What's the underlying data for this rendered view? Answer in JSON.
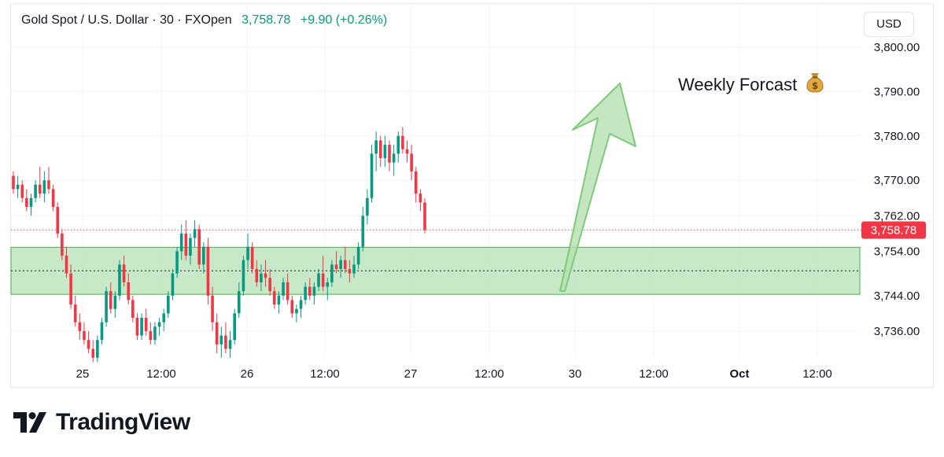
{
  "header": {
    "symbol": "Gold Spot / U.S. Dollar · 30 · FXOpen",
    "price": "3,758.78",
    "change": "+9.90 (+0.26%)"
  },
  "currency_button": "USD",
  "annotation": "Weekly Forcast",
  "brand": "TradingView",
  "colors": {
    "up": "#089981",
    "down": "#f23645",
    "zone_fill": "#b9e3ba",
    "zone_border": "#4caf50",
    "arrow_fill": "#b5e0b0",
    "arrow_stroke": "#7fc97a"
  },
  "chart_data": {
    "type": "candlestick",
    "symbol": "Gold Spot / U.S. Dollar",
    "interval": "30",
    "yaxis": {
      "ticks": [
        "3,800.00",
        "3,790.00",
        "3,780.00",
        "3,770.00",
        "3,762.00",
        "3,754.00",
        "3,744.00",
        "3,736.00"
      ],
      "tick_values": [
        3800,
        3790,
        3780,
        3770,
        3762,
        3754,
        3744,
        3736
      ],
      "last_price_label": "3,758.78",
      "last_price": 3758.78,
      "ylim": [
        3732,
        3802
      ]
    },
    "xaxis": {
      "ticks": [
        "25",
        "12:00",
        "26",
        "12:00",
        "27",
        "12:00",
        "30",
        "12:00",
        "Oct",
        "12:00"
      ],
      "bold": [
        false,
        false,
        false,
        false,
        false,
        false,
        false,
        false,
        true,
        false
      ]
    },
    "grid": true,
    "zone": {
      "top": 3754.9,
      "bottom": 3744.3,
      "mid": 3749.6
    },
    "arrow": {
      "direction": "up"
    },
    "candles": [
      {
        "o": 3771,
        "h": 3772,
        "l": 3767,
        "c": 3768
      },
      {
        "o": 3768,
        "h": 3771,
        "l": 3766,
        "c": 3769
      },
      {
        "o": 3769,
        "h": 3770,
        "l": 3765,
        "c": 3766
      },
      {
        "o": 3766,
        "h": 3768,
        "l": 3763,
        "c": 3764
      },
      {
        "o": 3764,
        "h": 3767,
        "l": 3762,
        "c": 3766
      },
      {
        "o": 3766,
        "h": 3770,
        "l": 3765,
        "c": 3769
      },
      {
        "o": 3769,
        "h": 3773,
        "l": 3766,
        "c": 3767
      },
      {
        "o": 3767,
        "h": 3772,
        "l": 3765,
        "c": 3770
      },
      {
        "o": 3770,
        "h": 3773,
        "l": 3767,
        "c": 3768
      },
      {
        "o": 3768,
        "h": 3769,
        "l": 3763,
        "c": 3764
      },
      {
        "o": 3764,
        "h": 3765,
        "l": 3757,
        "c": 3758
      },
      {
        "o": 3758,
        "h": 3759,
        "l": 3752,
        "c": 3753
      },
      {
        "o": 3753,
        "h": 3755,
        "l": 3748,
        "c": 3749
      },
      {
        "o": 3749,
        "h": 3751,
        "l": 3741,
        "c": 3742
      },
      {
        "o": 3742,
        "h": 3744,
        "l": 3737,
        "c": 3738
      },
      {
        "o": 3738,
        "h": 3740,
        "l": 3734,
        "c": 3736
      },
      {
        "o": 3736,
        "h": 3738,
        "l": 3733,
        "c": 3734
      },
      {
        "o": 3734,
        "h": 3736,
        "l": 3731,
        "c": 3732
      },
      {
        "o": 3732,
        "h": 3734,
        "l": 3729,
        "c": 3730
      },
      {
        "o": 3730,
        "h": 3735,
        "l": 3729,
        "c": 3734
      },
      {
        "o": 3734,
        "h": 3739,
        "l": 3733,
        "c": 3738
      },
      {
        "o": 3738,
        "h": 3746,
        "l": 3737,
        "c": 3745
      },
      {
        "o": 3745,
        "h": 3747,
        "l": 3740,
        "c": 3741
      },
      {
        "o": 3741,
        "h": 3745,
        "l": 3739,
        "c": 3744
      },
      {
        "o": 3744,
        "h": 3752,
        "l": 3743,
        "c": 3751
      },
      {
        "o": 3751,
        "h": 3753,
        "l": 3746,
        "c": 3747
      },
      {
        "o": 3747,
        "h": 3749,
        "l": 3742,
        "c": 3743
      },
      {
        "o": 3743,
        "h": 3744,
        "l": 3738,
        "c": 3739
      },
      {
        "o": 3739,
        "h": 3740,
        "l": 3734,
        "c": 3735
      },
      {
        "o": 3735,
        "h": 3740,
        "l": 3734,
        "c": 3739
      },
      {
        "o": 3739,
        "h": 3741,
        "l": 3735,
        "c": 3736
      },
      {
        "o": 3736,
        "h": 3738,
        "l": 3733,
        "c": 3734
      },
      {
        "o": 3734,
        "h": 3738,
        "l": 3733,
        "c": 3737
      },
      {
        "o": 3737,
        "h": 3739,
        "l": 3735,
        "c": 3738
      },
      {
        "o": 3738,
        "h": 3741,
        "l": 3736,
        "c": 3740
      },
      {
        "o": 3740,
        "h": 3745,
        "l": 3739,
        "c": 3744
      },
      {
        "o": 3744,
        "h": 3750,
        "l": 3743,
        "c": 3749
      },
      {
        "o": 3749,
        "h": 3755,
        "l": 3748,
        "c": 3754
      },
      {
        "o": 3754,
        "h": 3760,
        "l": 3752,
        "c": 3758
      },
      {
        "o": 3758,
        "h": 3761,
        "l": 3752,
        "c": 3753
      },
      {
        "o": 3753,
        "h": 3758,
        "l": 3751,
        "c": 3757
      },
      {
        "o": 3757,
        "h": 3761,
        "l": 3755,
        "c": 3759
      },
      {
        "o": 3759,
        "h": 3760,
        "l": 3750,
        "c": 3751
      },
      {
        "o": 3751,
        "h": 3756,
        "l": 3749,
        "c": 3755
      },
      {
        "o": 3755,
        "h": 3757,
        "l": 3742,
        "c": 3744
      },
      {
        "o": 3744,
        "h": 3746,
        "l": 3736,
        "c": 3738
      },
      {
        "o": 3738,
        "h": 3740,
        "l": 3731,
        "c": 3733
      },
      {
        "o": 3733,
        "h": 3737,
        "l": 3730,
        "c": 3735
      },
      {
        "o": 3735,
        "h": 3738,
        "l": 3731,
        "c": 3732
      },
      {
        "o": 3732,
        "h": 3736,
        "l": 3730,
        "c": 3734
      },
      {
        "o": 3734,
        "h": 3741,
        "l": 3733,
        "c": 3740
      },
      {
        "o": 3740,
        "h": 3747,
        "l": 3739,
        "c": 3745
      },
      {
        "o": 3745,
        "h": 3753,
        "l": 3744,
        "c": 3752
      },
      {
        "o": 3752,
        "h": 3758,
        "l": 3750,
        "c": 3755
      },
      {
        "o": 3755,
        "h": 3756,
        "l": 3749,
        "c": 3750
      },
      {
        "o": 3750,
        "h": 3752,
        "l": 3746,
        "c": 3747
      },
      {
        "o": 3747,
        "h": 3751,
        "l": 3745,
        "c": 3749
      },
      {
        "o": 3749,
        "h": 3752,
        "l": 3746,
        "c": 3748
      },
      {
        "o": 3748,
        "h": 3750,
        "l": 3744,
        "c": 3745
      },
      {
        "o": 3745,
        "h": 3746,
        "l": 3741,
        "c": 3742
      },
      {
        "o": 3742,
        "h": 3745,
        "l": 3740,
        "c": 3744
      },
      {
        "o": 3744,
        "h": 3748,
        "l": 3743,
        "c": 3747
      },
      {
        "o": 3747,
        "h": 3749,
        "l": 3742,
        "c": 3743
      },
      {
        "o": 3743,
        "h": 3744,
        "l": 3739,
        "c": 3740
      },
      {
        "o": 3740,
        "h": 3742,
        "l": 3738,
        "c": 3741
      },
      {
        "o": 3741,
        "h": 3744,
        "l": 3739,
        "c": 3743
      },
      {
        "o": 3743,
        "h": 3747,
        "l": 3742,
        "c": 3746
      },
      {
        "o": 3746,
        "h": 3748,
        "l": 3743,
        "c": 3744
      },
      {
        "o": 3744,
        "h": 3747,
        "l": 3742,
        "c": 3746
      },
      {
        "o": 3746,
        "h": 3750,
        "l": 3745,
        "c": 3749
      },
      {
        "o": 3749,
        "h": 3753,
        "l": 3745,
        "c": 3746
      },
      {
        "o": 3746,
        "h": 3748,
        "l": 3743,
        "c": 3747
      },
      {
        "o": 3747,
        "h": 3752,
        "l": 3746,
        "c": 3751
      },
      {
        "o": 3751,
        "h": 3754,
        "l": 3749,
        "c": 3750
      },
      {
        "o": 3750,
        "h": 3753,
        "l": 3748,
        "c": 3752
      },
      {
        "o": 3752,
        "h": 3755,
        "l": 3749,
        "c": 3750
      },
      {
        "o": 3750,
        "h": 3752,
        "l": 3747,
        "c": 3749
      },
      {
        "o": 3749,
        "h": 3753,
        "l": 3748,
        "c": 3751
      },
      {
        "o": 3751,
        "h": 3756,
        "l": 3750,
        "c": 3755
      },
      {
        "o": 3755,
        "h": 3764,
        "l": 3754,
        "c": 3762
      },
      {
        "o": 3762,
        "h": 3768,
        "l": 3760,
        "c": 3766
      },
      {
        "o": 3766,
        "h": 3778,
        "l": 3765,
        "c": 3776
      },
      {
        "o": 3776,
        "h": 3781,
        "l": 3772,
        "c": 3779
      },
      {
        "o": 3779,
        "h": 3780,
        "l": 3773,
        "c": 3775
      },
      {
        "o": 3775,
        "h": 3780,
        "l": 3773,
        "c": 3778
      },
      {
        "o": 3778,
        "h": 3779,
        "l": 3772,
        "c": 3774
      },
      {
        "o": 3774,
        "h": 3778,
        "l": 3771,
        "c": 3776
      },
      {
        "o": 3776,
        "h": 3781,
        "l": 3774,
        "c": 3780
      },
      {
        "o": 3780,
        "h": 3782,
        "l": 3776,
        "c": 3777
      },
      {
        "o": 3777,
        "h": 3779,
        "l": 3774,
        "c": 3776
      },
      {
        "o": 3776,
        "h": 3778,
        "l": 3770,
        "c": 3772
      },
      {
        "o": 3772,
        "h": 3773,
        "l": 3765,
        "c": 3767
      },
      {
        "o": 3767,
        "h": 3768,
        "l": 3763,
        "c": 3765
      },
      {
        "o": 3765,
        "h": 3766,
        "l": 3758,
        "c": 3758.78
      }
    ]
  }
}
